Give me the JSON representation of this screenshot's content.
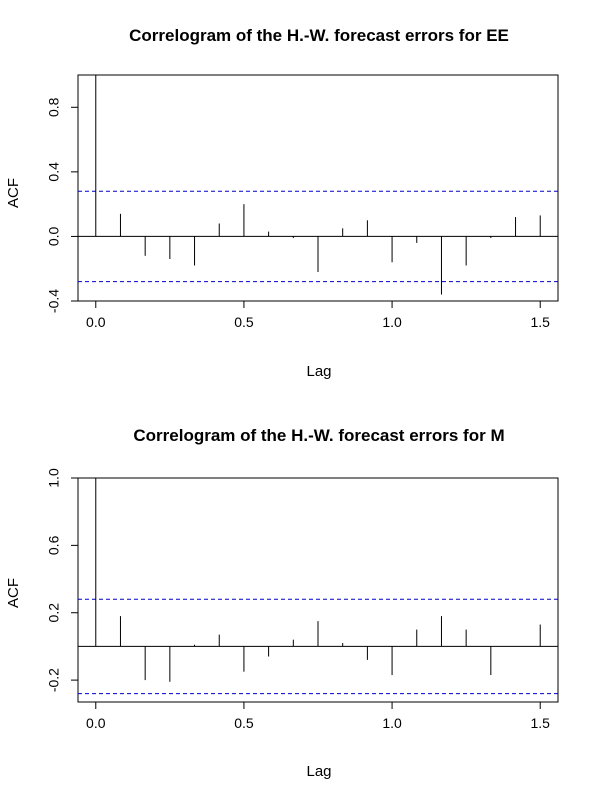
{
  "chart_data": [
    {
      "type": "bar",
      "title": "Correlogram of the H.-W. forecast errors for EE",
      "xlabel": "Lag",
      "ylabel": "ACF",
      "xlim": [
        -0.06,
        1.56
      ],
      "ylim": [
        -0.4,
        1.0
      ],
      "x_ticks": [
        0.0,
        0.5,
        1.0,
        1.5
      ],
      "x_tick_labels": [
        "0.0",
        "0.5",
        "1.0",
        "1.5"
      ],
      "y_ticks": [
        -0.4,
        0.0,
        0.4,
        0.8
      ],
      "y_tick_labels": [
        "-0.4",
        "0.0",
        "0.4",
        "0.8"
      ],
      "conf_bound": 0.28,
      "x": [
        0.0,
        0.0833,
        0.1667,
        0.25,
        0.3333,
        0.4167,
        0.5,
        0.5833,
        0.6667,
        0.75,
        0.8333,
        0.9167,
        1.0,
        1.0833,
        1.1667,
        1.25,
        1.3333,
        1.4167,
        1.5
      ],
      "values": [
        1.0,
        0.14,
        -0.12,
        -0.14,
        -0.18,
        0.08,
        0.2,
        0.03,
        -0.01,
        -0.22,
        0.05,
        0.1,
        -0.16,
        -0.04,
        -0.36,
        -0.18,
        -0.01,
        0.12,
        0.13
      ],
      "colors": {
        "bound": "#0000cc",
        "bar": "#000000"
      }
    },
    {
      "type": "bar",
      "title": "Correlogram of the H.-W. forecast errors for M",
      "xlabel": "Lag",
      "ylabel": "ACF",
      "xlim": [
        -0.06,
        1.56
      ],
      "ylim": [
        -0.33,
        1.0
      ],
      "x_ticks": [
        0.0,
        0.5,
        1.0,
        1.5
      ],
      "x_tick_labels": [
        "0.0",
        "0.5",
        "1.0",
        "1.5"
      ],
      "y_ticks": [
        -0.2,
        0.2,
        0.6,
        1.0
      ],
      "y_tick_labels": [
        "-0.2",
        "0.2",
        "0.6",
        "1.0"
      ],
      "conf_bound": 0.28,
      "x": [
        0.0,
        0.0833,
        0.1667,
        0.25,
        0.3333,
        0.4167,
        0.5,
        0.5833,
        0.6667,
        0.75,
        0.8333,
        0.9167,
        1.0,
        1.0833,
        1.1667,
        1.25,
        1.3333,
        1.4167,
        1.5
      ],
      "values": [
        1.0,
        0.18,
        -0.2,
        -0.21,
        0.01,
        0.07,
        -0.15,
        -0.06,
        0.04,
        0.15,
        0.02,
        -0.08,
        -0.17,
        0.1,
        0.18,
        0.1,
        -0.17,
        0.0,
        0.13
      ],
      "colors": {
        "bound": "#0000cc",
        "bar": "#000000"
      }
    }
  ]
}
